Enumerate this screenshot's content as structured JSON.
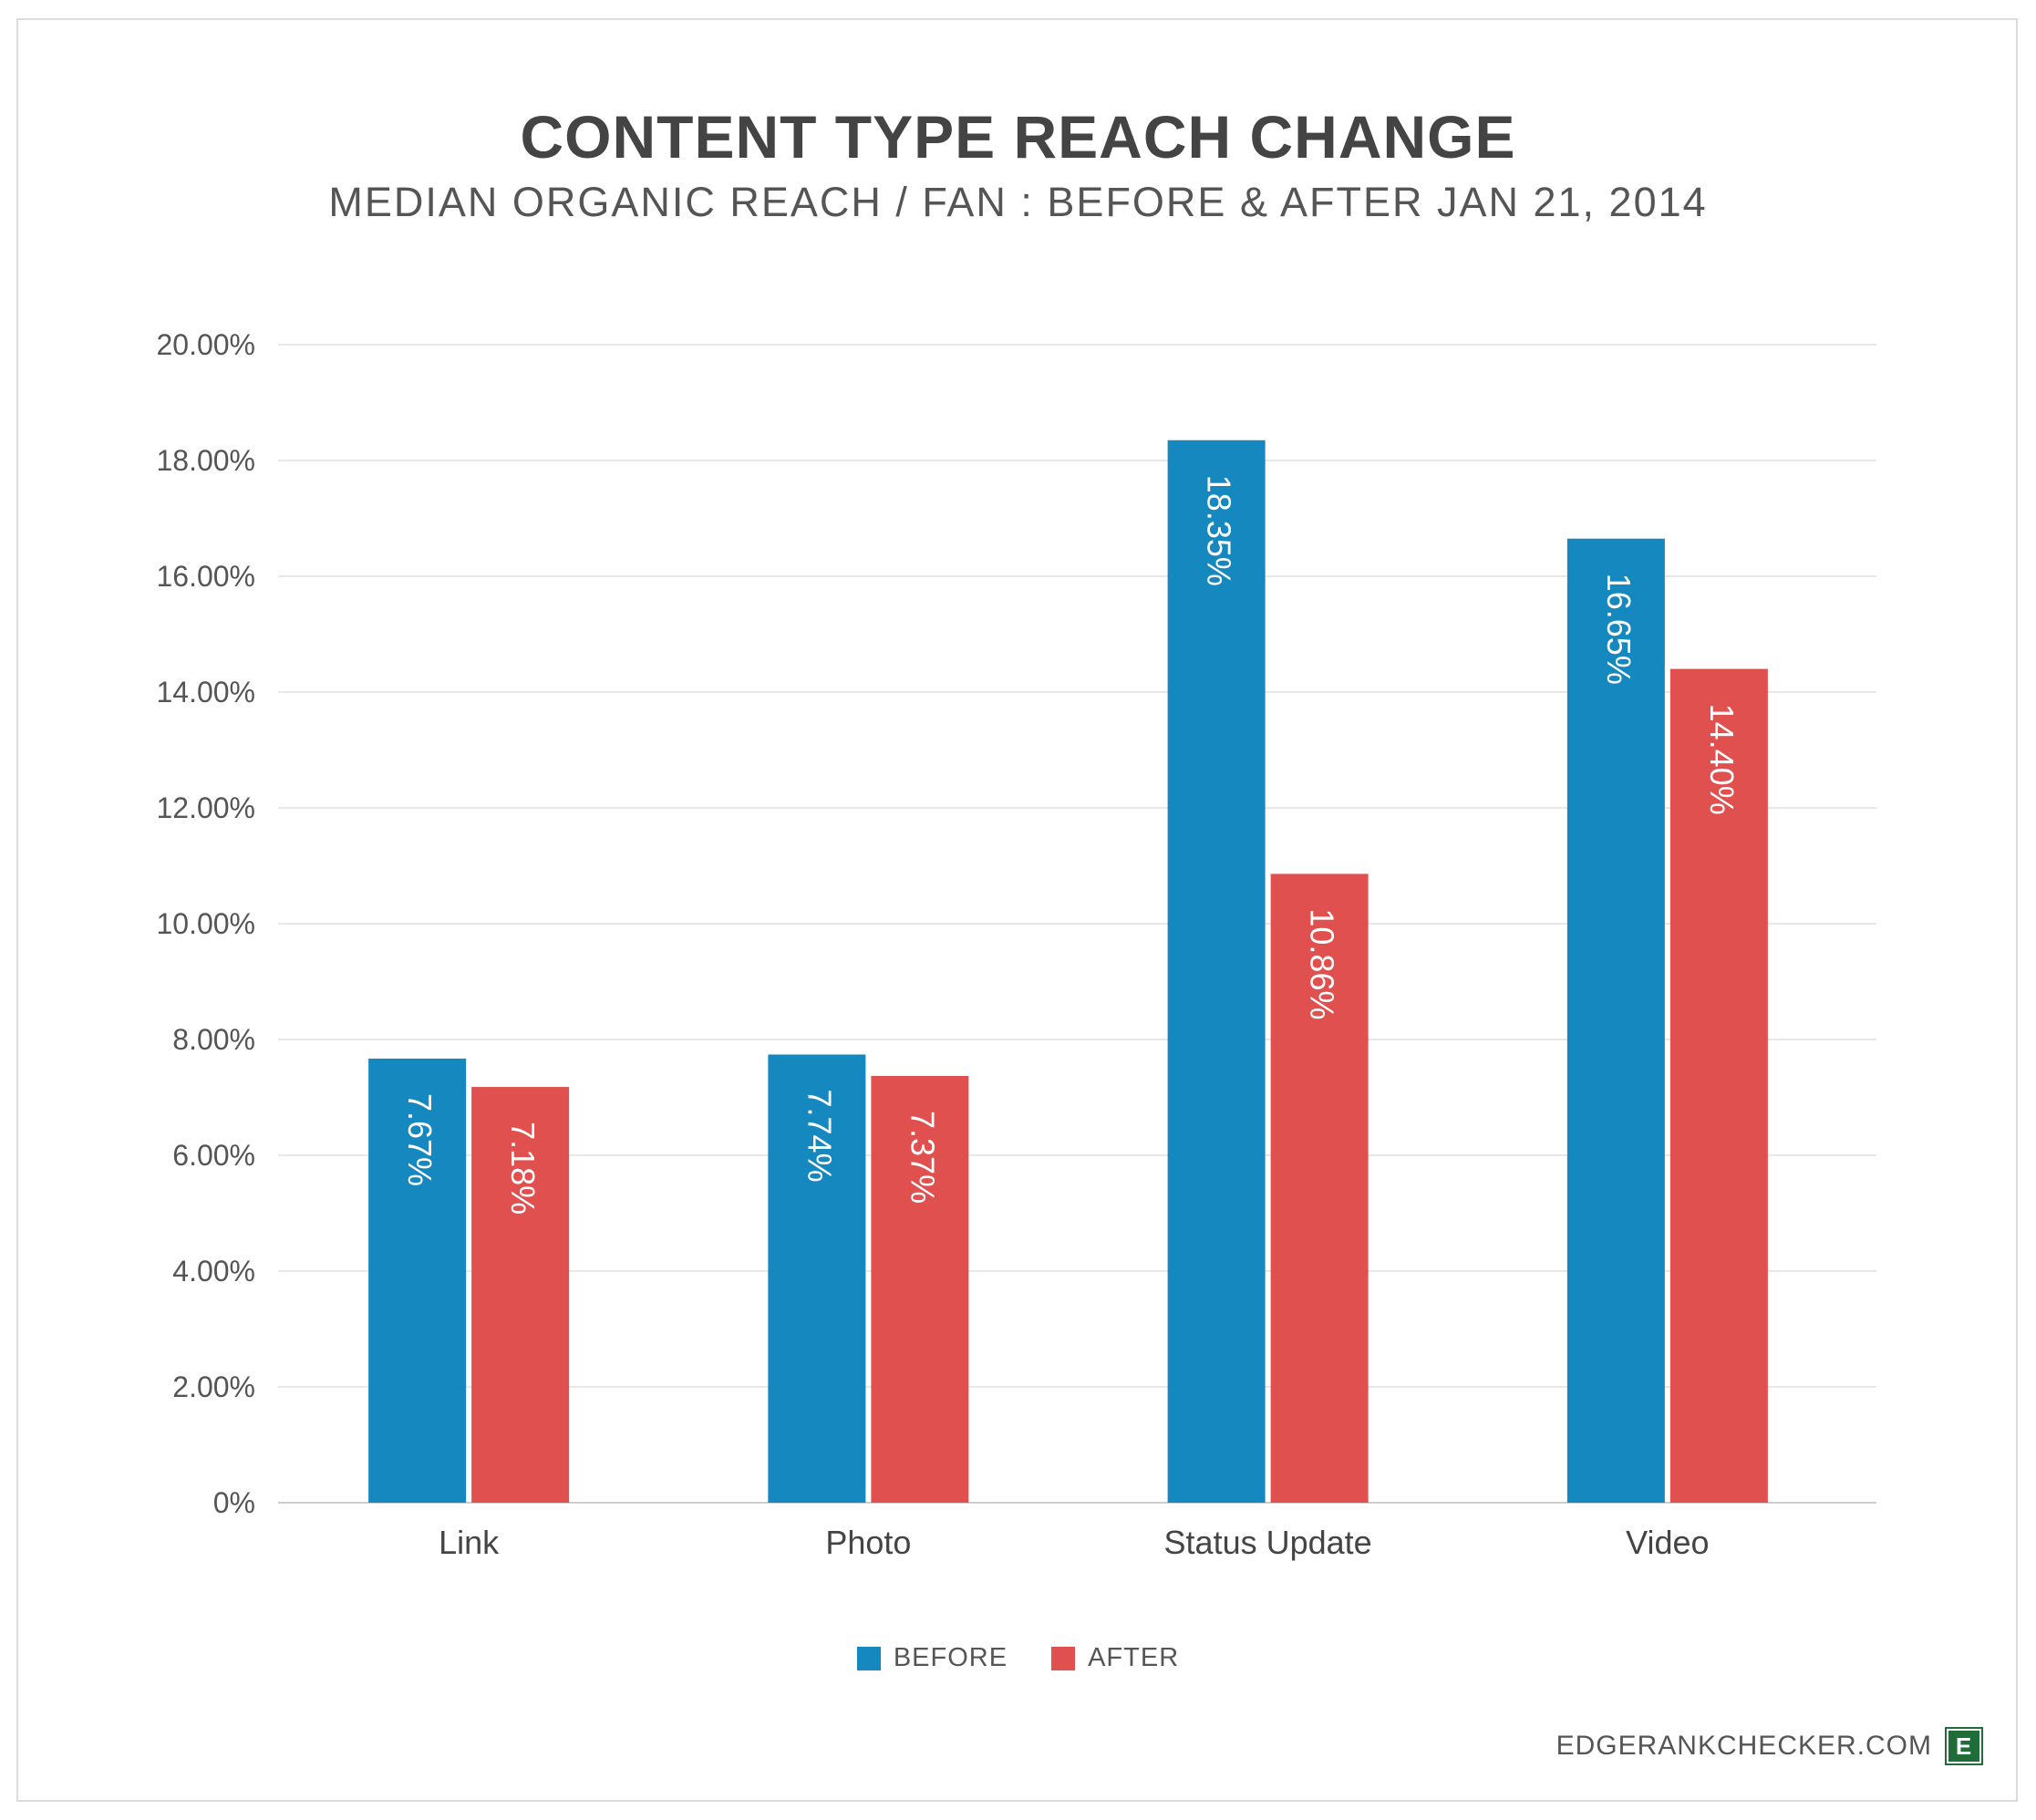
{
  "chart_data": {
    "type": "bar",
    "title": "CONTENT TYPE REACH CHANGE",
    "subtitle": "MEDIAN ORGANIC REACH / FAN : BEFORE & AFTER JAN 21, 2014",
    "categories": [
      "Link",
      "Photo",
      "Status Update",
      "Video"
    ],
    "series": [
      {
        "name": "BEFORE",
        "color": "#1589bf",
        "values": [
          7.67,
          7.74,
          18.35,
          16.65
        ],
        "labels": [
          "7.67%",
          "7.74%",
          "18.35%",
          "16.65%"
        ]
      },
      {
        "name": "AFTER",
        "color": "#e0504e",
        "values": [
          7.18,
          7.37,
          10.86,
          14.4
        ],
        "labels": [
          "7.18%",
          "7.37%",
          "10.86%",
          "14.40%"
        ]
      }
    ],
    "yticks": [
      "0%",
      "2.00%",
      "4.00%",
      "6.00%",
      "8.00%",
      "10.00%",
      "12.00%",
      "14.00%",
      "16.00%",
      "18.00%",
      "20.00%"
    ],
    "ylim": [
      0,
      20
    ],
    "grid": true,
    "legend_position": "bottom-center"
  },
  "footer": {
    "site": "EDGERANKCHECKER.COM",
    "logo_letter": "E"
  }
}
